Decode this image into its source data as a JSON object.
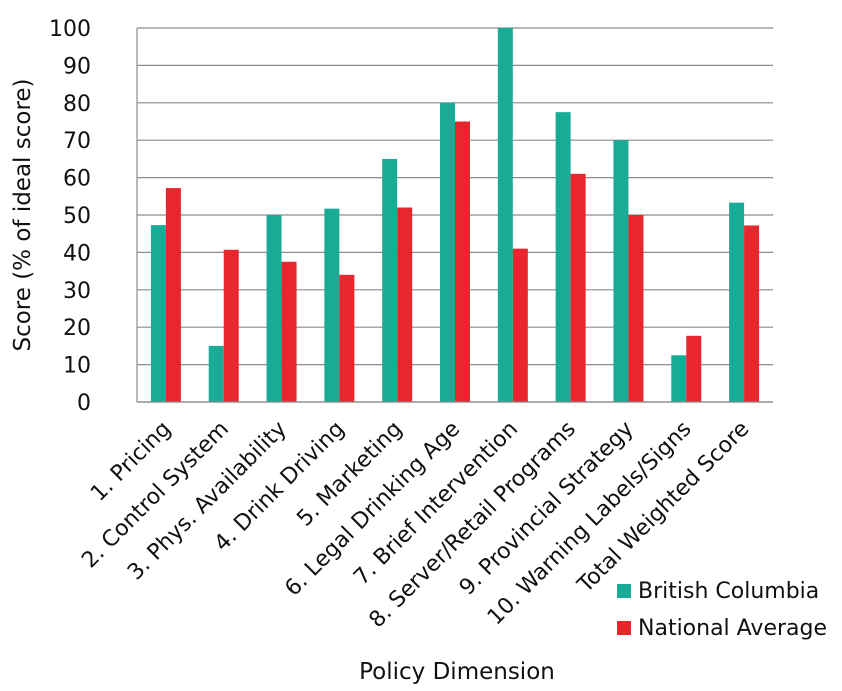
{
  "chart_data": {
    "type": "bar",
    "title": "",
    "xlabel": "Policy Dimension",
    "ylabel": "Score (% of ideal score)",
    "ylim": [
      0,
      100
    ],
    "yticks": [
      0,
      10,
      20,
      30,
      40,
      50,
      60,
      70,
      80,
      90,
      100
    ],
    "grid": true,
    "legend_position": "bottom-right",
    "categories": [
      "1. Pricing",
      "2. Control System",
      "3. Phys. Availability",
      "4. Drink Driving",
      "5. Marketing",
      "6. Legal Drinking Age",
      "7. Brief Intervention",
      "8. Server/Retail Programs",
      "9. Provincial Strategy",
      "10. Warning Labels/Signs",
      "Total Weighted Score"
    ],
    "series": [
      {
        "name": "British Columbia",
        "color": "#1aab97",
        "values": [
          47.3,
          15,
          50,
          51.7,
          65,
          80,
          100,
          77.5,
          70,
          12.5,
          53.3
        ]
      },
      {
        "name": "National Average",
        "color": "#e8262e",
        "values": [
          57.2,
          40.7,
          37.5,
          34,
          52,
          75,
          41,
          61,
          50,
          17.7,
          47.2
        ]
      }
    ]
  }
}
